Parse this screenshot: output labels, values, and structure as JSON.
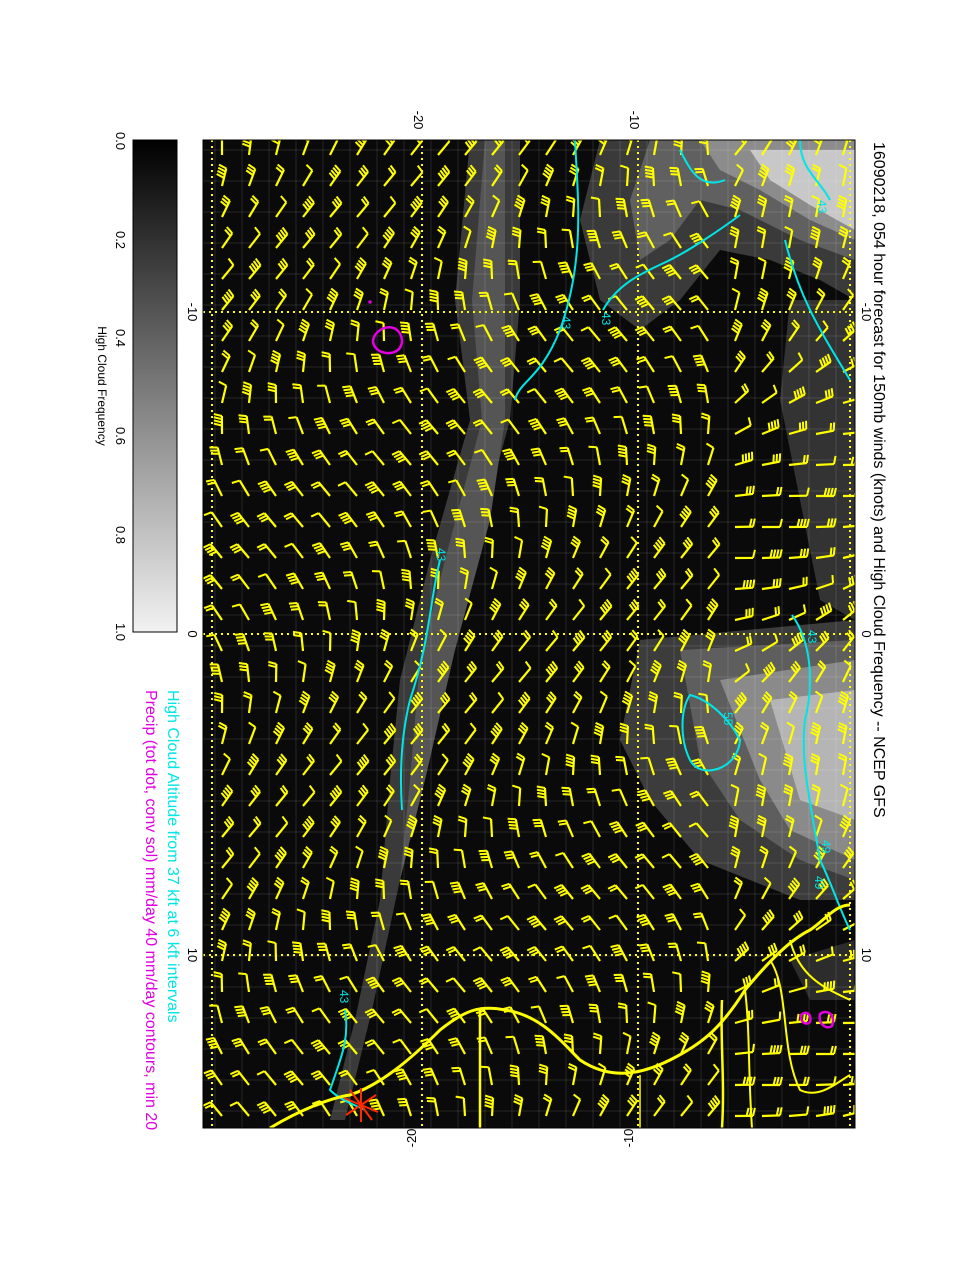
{
  "title": "16090218, 054 hour forecast for 150mb winds (knots) and High Cloud Frequency -- NCEP GFS",
  "legend": {
    "line1": "High Cloud Altitude from 37 kft at 6 kft intervals",
    "line2": "Precip (tot dot, conv sol) mm/day 40 mm/day contours, min 20",
    "line1_color": "#00e5e5",
    "line2_color": "#e000e0"
  },
  "colorbar": {
    "label": "High Cloud Frequency",
    "ticks": [
      "0.0",
      "0.2",
      "0.4",
      "0.6",
      "0.8",
      "1.0"
    ],
    "range": [
      0,
      1
    ]
  },
  "axes": {
    "top_labels": [
      "-20",
      "-10"
    ],
    "bottom_labels": [
      "-20",
      "-10"
    ],
    "left_labels": [
      "-10",
      "0",
      "10"
    ],
    "right_labels": [
      "-10",
      "0",
      "10"
    ]
  },
  "contour_labels": [
    "43",
    "43",
    "43",
    "43",
    "43",
    "55",
    "49",
    "49",
    "43"
  ],
  "colors": {
    "map_background": "#0a0a0a",
    "barbs": "#ffff00",
    "coastline": "#ffff00",
    "cloud_contours": "#00e5e5",
    "precip_contours": "#e000e0",
    "grid": "#ffff00",
    "marker": "#ff2a00"
  },
  "icons": {
    "location_marker": "star-marker-icon"
  }
}
